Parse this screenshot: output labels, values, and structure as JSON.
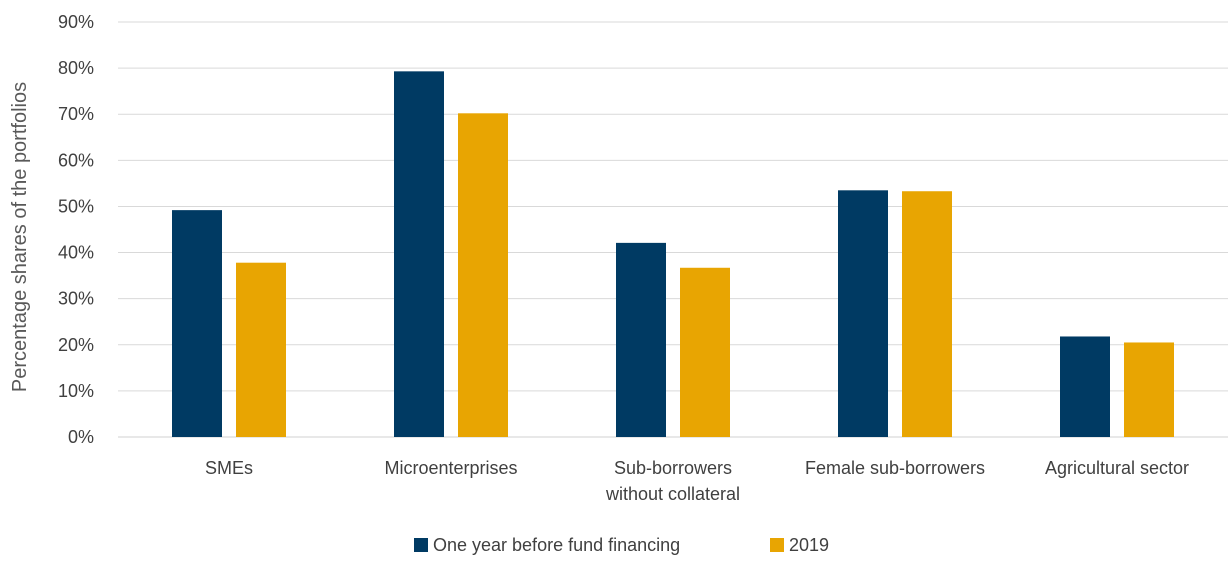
{
  "chart_data": {
    "type": "bar",
    "title": "",
    "ylabel": "Percentage shares of the portfolios",
    "xlabel": "",
    "ylim": [
      0,
      90
    ],
    "yticks": [
      "0%",
      "10%",
      "20%",
      "30%",
      "40%",
      "50%",
      "60%",
      "70%",
      "80%",
      "90%"
    ],
    "ytick_values": [
      0,
      10,
      20,
      30,
      40,
      50,
      60,
      70,
      80,
      90
    ],
    "categories": [
      [
        "SMEs"
      ],
      [
        "Microenterprises"
      ],
      [
        "Sub-borrowers",
        "without collateral"
      ],
      [
        "Female sub-borrowers"
      ],
      [
        "Agricultural sector"
      ]
    ],
    "series": [
      {
        "name": "One year before fund financing",
        "color": "#003a63",
        "values": [
          49.2,
          79.3,
          42.1,
          53.5,
          21.8
        ]
      },
      {
        "name": "2019",
        "color": "#e8a502",
        "values": [
          37.8,
          70.2,
          36.7,
          53.3,
          20.5
        ]
      }
    ],
    "grid": true,
    "legend_position": "bottom"
  }
}
